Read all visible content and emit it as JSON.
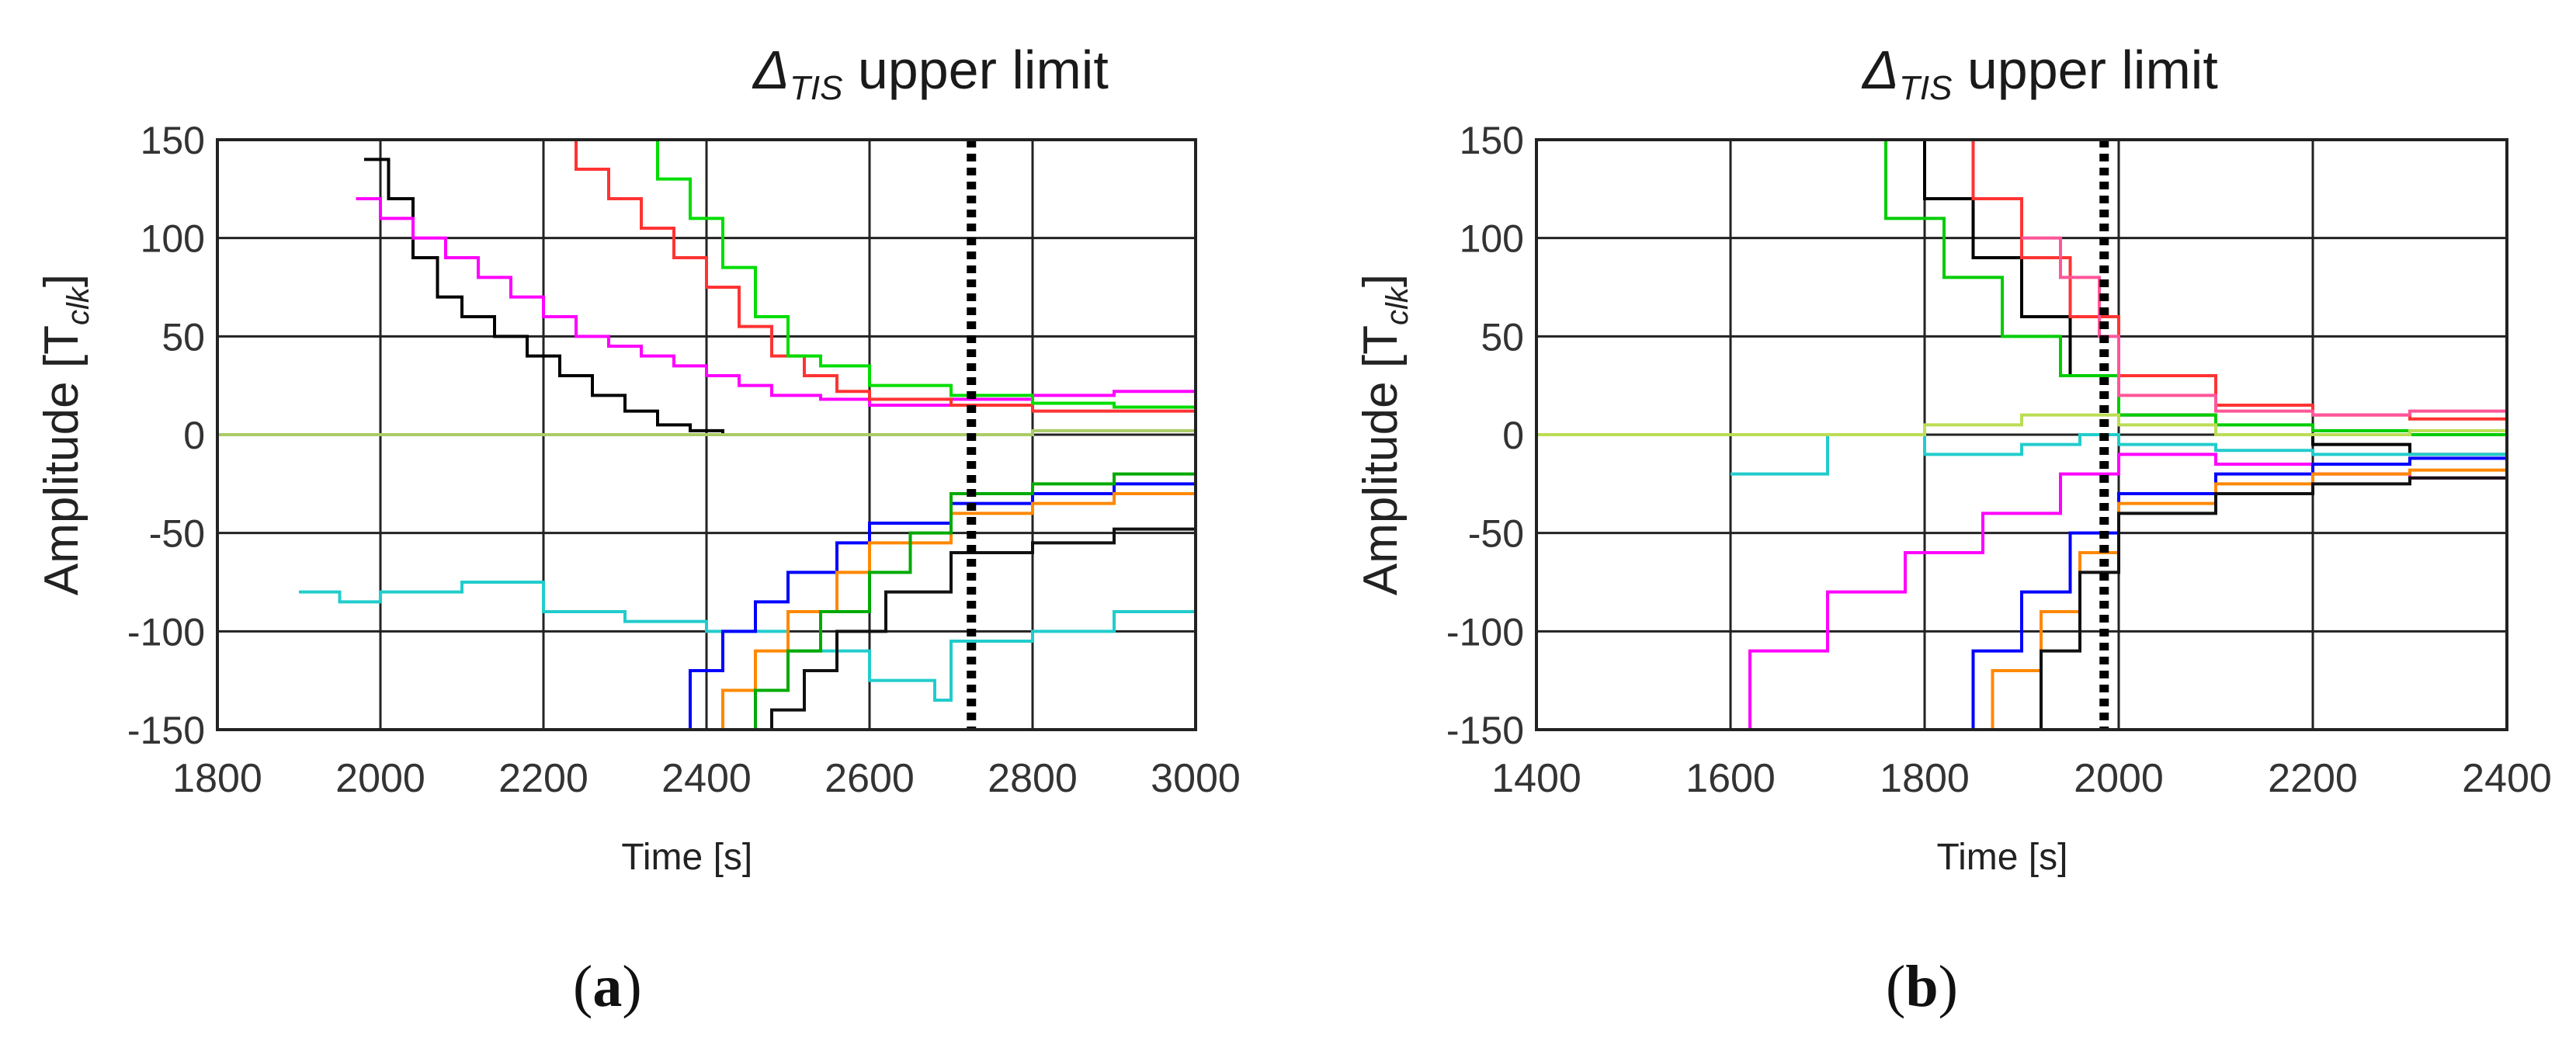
{
  "chart_data": [
    {
      "panel": "(a)",
      "type": "line",
      "title": "",
      "annotation": {
        "symbol": "Δ",
        "subscript": "TIS",
        "text": "upper limit",
        "x": 2725
      },
      "xlabel": "Time [s]",
      "ylabel": "Amplitude [T",
      "ylabel_sub": "clk",
      "ylabel_end": "]",
      "xlim": [
        1800,
        3000
      ],
      "ylim": [
        -150,
        150
      ],
      "xticks": [
        1800,
        2000,
        2200,
        2400,
        2600,
        2800,
        3000
      ],
      "yticks": [
        150,
        100,
        50,
        0,
        -50,
        -100,
        -150
      ],
      "grid": true,
      "series": [
        {
          "color": "#000000",
          "x": [
            1980,
            2010,
            2040,
            2070,
            2100,
            2140,
            2180,
            2220,
            2260,
            2300,
            2340,
            2380,
            2420
          ],
          "y": [
            140,
            120,
            90,
            70,
            60,
            50,
            40,
            30,
            20,
            12,
            5,
            2,
            0
          ]
        },
        {
          "color": "#ff00ff",
          "x": [
            1970,
            2000,
            2040,
            2080,
            2120,
            2160,
            2200,
            2240,
            2280,
            2320,
            2360,
            2400,
            2440,
            2480,
            2540,
            2600,
            2700,
            2800,
            2900,
            3000
          ],
          "y": [
            120,
            110,
            100,
            90,
            80,
            70,
            60,
            50,
            45,
            40,
            35,
            30,
            25,
            20,
            18,
            15,
            18,
            20,
            22,
            22
          ]
        },
        {
          "color": "#ff3333",
          "x": [
            2200,
            2240,
            2280,
            2320,
            2360,
            2400,
            2440,
            2480,
            2520,
            2560,
            2600,
            2700,
            2800,
            2900,
            3000
          ],
          "y": [
            150,
            135,
            120,
            105,
            90,
            75,
            55,
            40,
            30,
            22,
            18,
            15,
            12,
            12,
            14
          ]
        },
        {
          "color": "#00dd00",
          "x": [
            2300,
            2340,
            2380,
            2420,
            2460,
            2500,
            2540,
            2600,
            2700,
            2800,
            2900,
            3000
          ],
          "y": [
            150,
            130,
            110,
            85,
            60,
            40,
            35,
            25,
            20,
            16,
            14,
            12
          ]
        },
        {
          "color": "#22cccc",
          "x": [
            1900,
            1950,
            2000,
            2100,
            2200,
            2300,
            2400,
            2500,
            2600,
            2680,
            2700,
            2800,
            2900,
            3000
          ],
          "y": [
            -80,
            -85,
            -80,
            -75,
            -90,
            -95,
            -100,
            -110,
            -125,
            -135,
            -105,
            -100,
            -90,
            -80
          ]
        },
        {
          "color": "#0000ff",
          "x": [
            2340,
            2380,
            2420,
            2460,
            2500,
            2560,
            2600,
            2700,
            2800,
            2900,
            3000
          ],
          "y": [
            -150,
            -120,
            -100,
            -85,
            -70,
            -55,
            -45,
            -35,
            -30,
            -25,
            -20
          ]
        },
        {
          "color": "#ff8800",
          "x": [
            2380,
            2420,
            2460,
            2500,
            2560,
            2600,
            2700,
            2800,
            2900,
            3000
          ],
          "y": [
            -150,
            -130,
            -110,
            -90,
            -70,
            -55,
            -40,
            -35,
            -30,
            -28
          ]
        },
        {
          "color": "#00aa00",
          "x": [
            2420,
            2460,
            2500,
            2540,
            2600,
            2650,
            2700,
            2800,
            2900,
            3000
          ],
          "y": [
            -150,
            -130,
            -110,
            -90,
            -70,
            -50,
            -30,
            -25,
            -20,
            -18
          ]
        },
        {
          "color": "#111111",
          "x": [
            2440,
            2480,
            2520,
            2560,
            2620,
            2700,
            2800,
            2900,
            3000
          ],
          "y": [
            -150,
            -140,
            -120,
            -100,
            -80,
            -60,
            -55,
            -48,
            -42
          ]
        },
        {
          "color": "#aacc66",
          "x": [
            1800,
            2000,
            2200,
            2400,
            2600,
            2800,
            3000
          ],
          "y": [
            0,
            0,
            0,
            0,
            0,
            2,
            5
          ]
        }
      ]
    },
    {
      "panel": "(b)",
      "type": "line",
      "title": "",
      "annotation": {
        "symbol": "Δ",
        "subscript": "TIS",
        "text": "upper limit",
        "x": 1985
      },
      "xlabel": "Time [s]",
      "ylabel": "Amplitude [T",
      "ylabel_sub": "clk",
      "ylabel_end": "]",
      "xlim": [
        1400,
        2400
      ],
      "ylim": [
        -150,
        150
      ],
      "xticks": [
        1400,
        1600,
        1800,
        2000,
        2200,
        2400
      ],
      "yticks": [
        150,
        100,
        50,
        0,
        -50,
        -100,
        -150
      ],
      "grid": true,
      "series": [
        {
          "color": "#000000",
          "x": [
            1760,
            1800,
            1850,
            1900,
            1950,
            2000,
            2100,
            2200,
            2300,
            2400
          ],
          "y": [
            150,
            120,
            90,
            60,
            30,
            10,
            0,
            -5,
            -10,
            -10
          ]
        },
        {
          "color": "#ff3333",
          "x": [
            1800,
            1850,
            1900,
            1950,
            2000,
            2100,
            2200,
            2300,
            2400
          ],
          "y": [
            150,
            120,
            90,
            60,
            30,
            15,
            10,
            8,
            6
          ]
        },
        {
          "color": "#00cc00",
          "x": [
            1700,
            1760,
            1820,
            1880,
            1940,
            2000,
            2100,
            2200,
            2300,
            2400
          ],
          "y": [
            150,
            110,
            80,
            50,
            30,
            10,
            5,
            2,
            0,
            0
          ]
        },
        {
          "color": "#ff00ff",
          "x": [
            1560,
            1620,
            1700,
            1780,
            1860,
            1940,
            2000,
            2100,
            2200,
            2300,
            2400
          ],
          "y": [
            -150,
            -110,
            -80,
            -60,
            -40,
            -20,
            -10,
            -15,
            -20,
            -22,
            -24
          ]
        },
        {
          "color": "#0000ff",
          "x": [
            1800,
            1850,
            1900,
            1950,
            2000,
            2100,
            2200,
            2300,
            2400
          ],
          "y": [
            -150,
            -110,
            -80,
            -50,
            -30,
            -20,
            -15,
            -12,
            -10
          ]
        },
        {
          "color": "#ff8800",
          "x": [
            1820,
            1870,
            1920,
            1960,
            2000,
            2100,
            2200,
            2300,
            2400
          ],
          "y": [
            -150,
            -120,
            -90,
            -60,
            -35,
            -25,
            -20,
            -18,
            -16
          ]
        },
        {
          "color": "#22cccc",
          "x": [
            1600,
            1700,
            1800,
            1900,
            1960,
            2000,
            2100,
            2200,
            2300,
            2400
          ],
          "y": [
            -20,
            0,
            -10,
            -5,
            0,
            -5,
            -8,
            -10,
            -10,
            -12
          ]
        },
        {
          "color": "#bbdd55",
          "x": [
            1400,
            1500,
            1600,
            1700,
            1800,
            1900,
            2000,
            2100,
            2200,
            2300,
            2400
          ],
          "y": [
            0,
            0,
            0,
            0,
            5,
            10,
            5,
            0,
            0,
            2,
            3
          ]
        },
        {
          "color": "#111111",
          "x": [
            1880,
            1920,
            1960,
            2000,
            2100,
            2200,
            2300,
            2400
          ],
          "y": [
            -150,
            -110,
            -70,
            -40,
            -30,
            -25,
            -22,
            -20
          ]
        },
        {
          "color": "#ff5599",
          "x": [
            1900,
            1940,
            1980,
            2000,
            2100,
            2200,
            2300,
            2400
          ],
          "y": [
            100,
            80,
            50,
            20,
            12,
            10,
            12,
            14
          ]
        }
      ]
    }
  ]
}
